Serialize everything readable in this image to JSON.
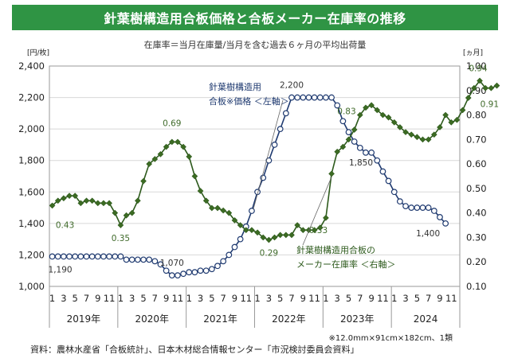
{
  "title": "針葉樹構造用合板価格と合板メーカー在庫率の推移",
  "subtitle": "在庫率＝当月在庫量/当月を含む過去６ヶ月の平均出荷量",
  "note": "※12.0mm×91cm×182cm、1類",
  "source": "資料：農林水産省「合板統計」、日本木材総合情報センター「市況検討委員会資料」",
  "colors": {
    "title_bg": "#2f9444",
    "price_line": "#1f3a70",
    "ratio_line": "#2d5a1c",
    "ratio_marker": "#3c6b23",
    "grid": "#d8d8d8"
  },
  "chart_data": {
    "type": "line",
    "left_axis_unit": "[円/枚]",
    "right_axis_unit": "[ヵ月]",
    "ylim_left": [
      1000,
      2400
    ],
    "ylim_right": [
      0.1,
      1.0
    ],
    "y_ticks_left": [
      "1,000",
      "1,200",
      "1,400",
      "1,600",
      "1,800",
      "2,000",
      "2,200",
      "2,400"
    ],
    "y_ticks_right": [
      "0.10",
      "0.20",
      "0.30",
      "0.40",
      "0.50",
      "0.60",
      "0.70",
      "0.80",
      "0.90",
      "1.00"
    ],
    "month_ticks": [
      "1",
      "3",
      "5",
      "7",
      "9",
      "11"
    ],
    "years": [
      "2019年",
      "2020年",
      "2021年",
      "2022年",
      "2023年",
      "2024"
    ],
    "x_start": "2019-01",
    "series": [
      {
        "name": "針葉樹構造用合板※価格＜左軸＞",
        "axis": "left",
        "label_lines": [
          "針葉樹構造用",
          "合板※価格 ＜左軸＞"
        ],
        "values": [
          1190,
          1190,
          1190,
          1190,
          1190,
          1190,
          1190,
          1190,
          1190,
          1190,
          1190,
          1190,
          1190,
          1170,
          1170,
          1170,
          1170,
          1170,
          1160,
          1140,
          1100,
          1070,
          1070,
          1080,
          1090,
          1090,
          1100,
          1100,
          1110,
          1130,
          1160,
          1200,
          1250,
          1300,
          1380,
          1480,
          1600,
          1690,
          1800,
          1900,
          2000,
          2100,
          2200,
          2200,
          2200,
          2200,
          2200,
          2200,
          2200,
          2200,
          2150,
          2050,
          1980,
          1920,
          1880,
          1850,
          1850,
          1800,
          1730,
          1670,
          1600,
          1540,
          1510,
          1500,
          1500,
          1500,
          1500,
          1480,
          1440,
          1400
        ],
        "annotations": [
          {
            "index": 0,
            "text": "1,190"
          },
          {
            "index": 21,
            "text": "1,070"
          },
          {
            "index": 42,
            "text": "2,200"
          },
          {
            "index": 55,
            "text": "1,850"
          },
          {
            "index": 69,
            "text": "1,400"
          }
        ]
      },
      {
        "name": "針葉樹構造用合板のメーカー在庫率＜右軸＞",
        "axis": "right",
        "label_lines": [
          "針葉樹構造用合板の",
          "メーカー在庫率 ＜右軸＞"
        ],
        "values": [
          0.43,
          0.45,
          0.46,
          0.47,
          0.47,
          0.44,
          0.45,
          0.45,
          0.44,
          0.44,
          0.44,
          0.4,
          0.35,
          0.39,
          0.4,
          0.45,
          0.53,
          0.6,
          0.62,
          0.64,
          0.67,
          0.69,
          0.69,
          0.67,
          0.63,
          0.55,
          0.49,
          0.45,
          0.42,
          0.42,
          0.41,
          0.4,
          0.37,
          0.35,
          0.33,
          0.33,
          0.32,
          0.3,
          0.29,
          0.3,
          0.31,
          0.31,
          0.31,
          0.35,
          0.33,
          0.33,
          0.33,
          0.34,
          0.38,
          0.56,
          0.65,
          0.67,
          0.7,
          0.74,
          0.8,
          0.83,
          0.84,
          0.82,
          0.8,
          0.79,
          0.77,
          0.75,
          0.73,
          0.72,
          0.71,
          0.7,
          0.7,
          0.72,
          0.75,
          0.8,
          0.77,
          0.78,
          0.82,
          0.87,
          0.91,
          0.94,
          0.91,
          0.91,
          0.92
        ],
        "annotations": [
          {
            "index": 0,
            "text": "0.43"
          },
          {
            "index": 12,
            "text": "0.35"
          },
          {
            "index": 21,
            "text": "0.69"
          },
          {
            "index": 38,
            "text": "0.29"
          },
          {
            "index": 45,
            "text": "0.33"
          },
          {
            "index": 55,
            "text": "0.83"
          },
          {
            "index": 75,
            "text": "0.94"
          },
          {
            "index": 77,
            "text": "0.91"
          }
        ]
      }
    ]
  }
}
